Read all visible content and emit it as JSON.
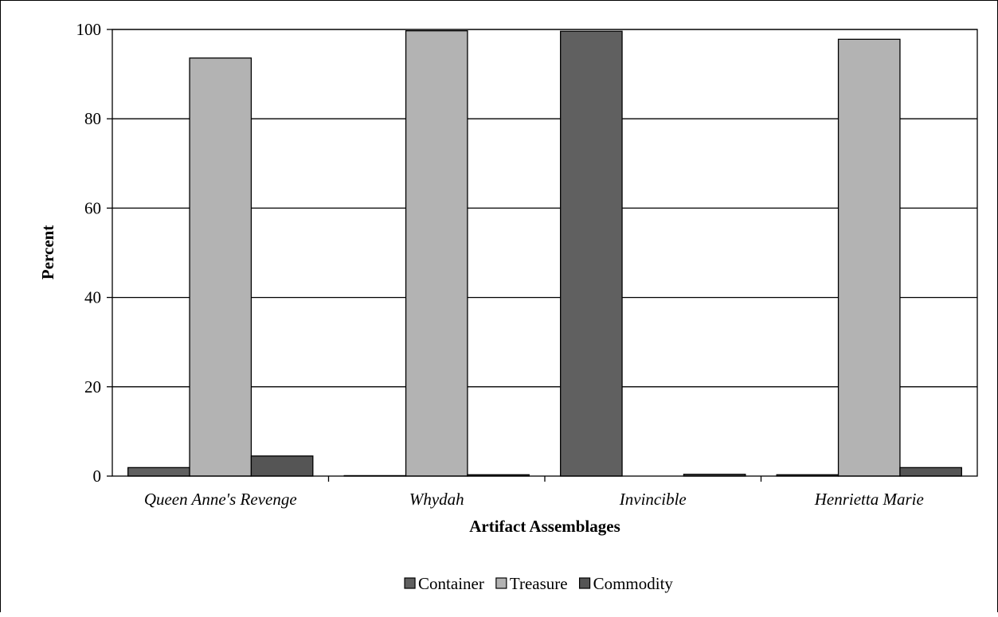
{
  "chart_data": {
    "type": "bar",
    "title": "",
    "xlabel": "Artifact Assemblages",
    "ylabel": "Percent",
    "ylim": [
      0,
      100
    ],
    "yticks": [
      0,
      20,
      40,
      60,
      80,
      100
    ],
    "yticks_text": [
      "0",
      "20",
      "40",
      "60",
      "80",
      "100"
    ],
    "grid": true,
    "legend_position": "bottom",
    "categories": [
      "Queen Anne's Revenge",
      "Whydah",
      "Invincible",
      "Henrietta Marie"
    ],
    "series": [
      {
        "name": "Container",
        "color": "#606060",
        "values": [
          1.9,
          0.1,
          99.6,
          0.3
        ]
      },
      {
        "name": "Treasure",
        "color": "#b3b3b3",
        "values": [
          93.6,
          99.7,
          0.0,
          97.8
        ]
      },
      {
        "name": "Commodity",
        "color": "#555555",
        "values": [
          4.5,
          0.3,
          0.4,
          1.9
        ]
      }
    ]
  }
}
